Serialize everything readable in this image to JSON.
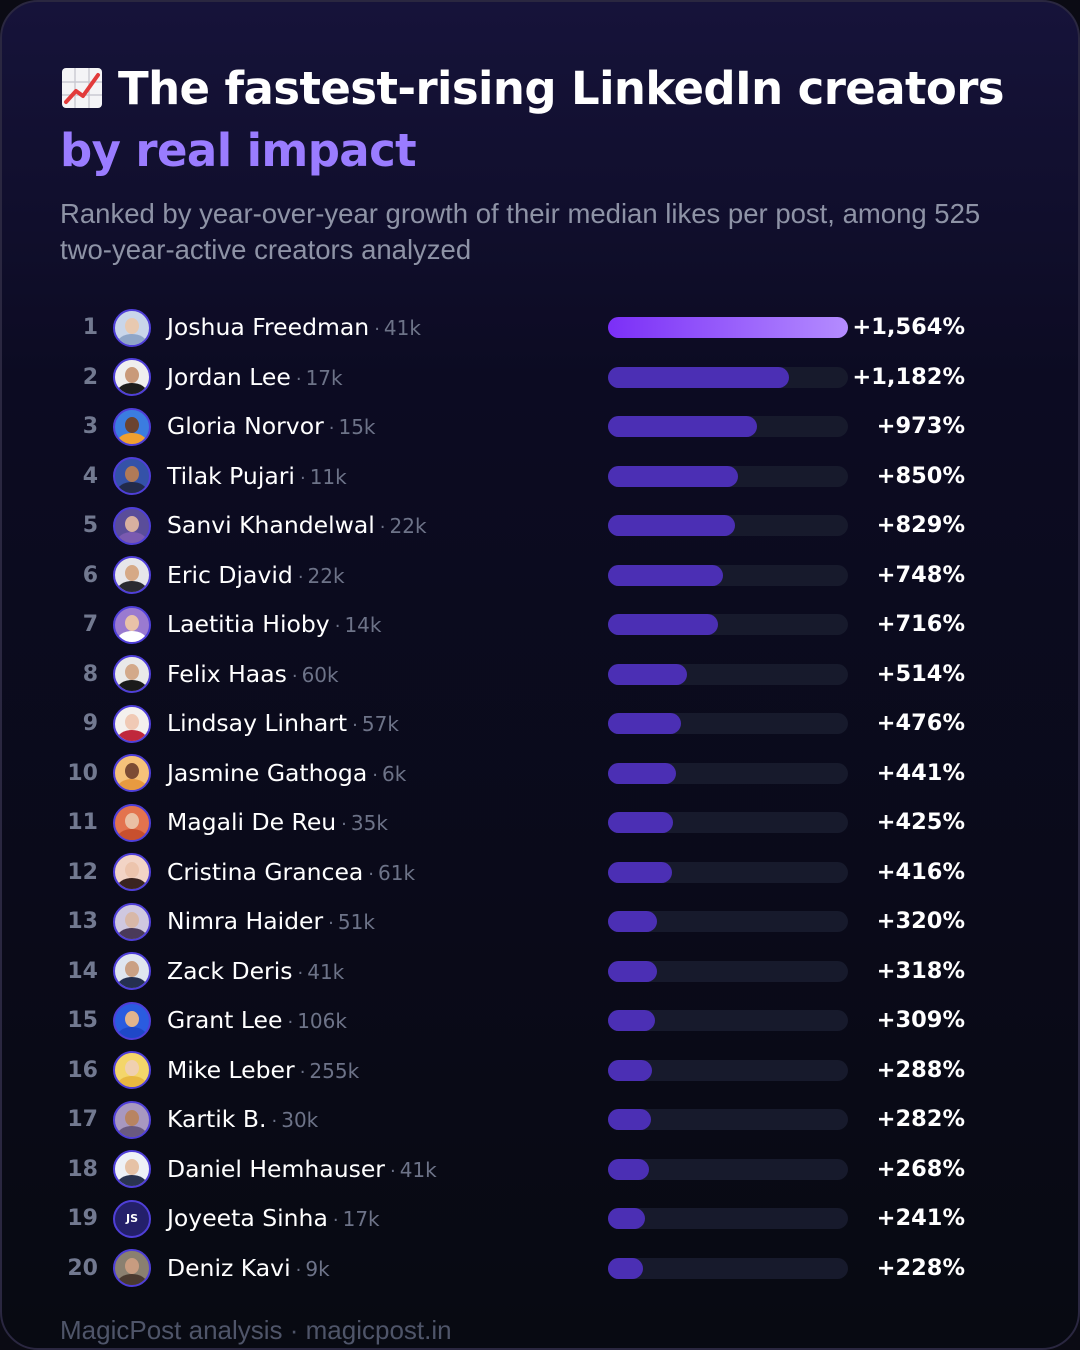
{
  "header": {
    "emoji": "chart-increasing-icon",
    "title_main": "The fastest-rising LinkedIn creators ",
    "title_accent": "by real impact",
    "subtitle": "Ranked by year-over-year growth of their median likes per post, among 525 two-year-active creators analyzed"
  },
  "colors": {
    "accent": "#9a7cff",
    "bar": "#4b2fb4",
    "bar_lead_start": "#7b2ff7",
    "bar_lead_end": "#b48cff",
    "track": "#171a2c"
  },
  "chart_data": {
    "type": "bar",
    "orientation": "horizontal",
    "title": "The fastest-rising LinkedIn creators by real impact",
    "subtitle": "Ranked by year-over-year growth of their median likes per post, among 525 two-year-active creators analyzed",
    "xlim": [
      0,
      1564
    ],
    "unit": "%",
    "rows": [
      {
        "rank": "1",
        "name": "Joshua Freedman",
        "followers": "41k",
        "value": 1564,
        "label": "+1,564%",
        "avatar": {
          "skin": "#e8c9b0",
          "shirt": "#8fa6c8",
          "bg": "#c9d6ea"
        }
      },
      {
        "rank": "2",
        "name": "Jordan Lee",
        "followers": "17k",
        "value": 1182,
        "label": "+1,182%",
        "avatar": {
          "skin": "#c99a7a",
          "shirt": "#1c1c1c",
          "bg": "#efefef"
        }
      },
      {
        "rank": "3",
        "name": "Gloria Norvor",
        "followers": "15k",
        "value": 973,
        "label": "+973%",
        "avatar": {
          "skin": "#6b4330",
          "shirt": "#f0a030",
          "bg": "#3b7de0"
        }
      },
      {
        "rank": "4",
        "name": "Tilak Pujari",
        "followers": "11k",
        "value": 850,
        "label": "+850%",
        "avatar": {
          "skin": "#b07a58",
          "shirt": "#222a4a",
          "bg": "#3452a8"
        }
      },
      {
        "rank": "5",
        "name": "Sanvi Khandelwal",
        "followers": "22k",
        "value": 829,
        "label": "+829%",
        "avatar": {
          "skin": "#d8b0a0",
          "shirt": "#7a5ab0",
          "bg": "#5a4d9a"
        }
      },
      {
        "rank": "6",
        "name": "Eric Djavid",
        "followers": "22k",
        "value": 748,
        "label": "+748%",
        "avatar": {
          "skin": "#d6a986",
          "shirt": "#2a2a30",
          "bg": "#e6e6ea"
        }
      },
      {
        "rank": "7",
        "name": "Laetitia Hioby",
        "followers": "14k",
        "value": 716,
        "label": "+716%",
        "avatar": {
          "skin": "#e9c2a8",
          "shirt": "#ffffff",
          "bg": "#9a7ad0"
        }
      },
      {
        "rank": "8",
        "name": "Felix Haas",
        "followers": "60k",
        "value": 514,
        "label": "+514%",
        "avatar": {
          "skin": "#d3a98a",
          "shirt": "#1a1a1a",
          "bg": "#e9e9e9"
        }
      },
      {
        "rank": "9",
        "name": "Lindsay Linhart",
        "followers": "57k",
        "value": 476,
        "label": "+476%",
        "avatar": {
          "skin": "#f0c9b5",
          "shirt": "#c0283c",
          "bg": "#f4f0ee"
        }
      },
      {
        "rank": "10",
        "name": "Jasmine Gathoga",
        "followers": "6k",
        "value": 441,
        "label": "+441%",
        "avatar": {
          "skin": "#7c4c34",
          "shirt": "#e89a40",
          "bg": "#f6c27a"
        }
      },
      {
        "rank": "11",
        "name": "Magali De Reu",
        "followers": "35k",
        "value": 425,
        "label": "+425%",
        "avatar": {
          "skin": "#eac0a4",
          "shirt": "#c8502e",
          "bg": "#e3734e"
        }
      },
      {
        "rank": "12",
        "name": "Cristina Grancea",
        "followers": "61k",
        "value": 416,
        "label": "+416%",
        "avatar": {
          "skin": "#ecc4ad",
          "shirt": "#3a2420",
          "bg": "#f2d4c6"
        }
      },
      {
        "rank": "13",
        "name": "Nimra Haider",
        "followers": "51k",
        "value": 320,
        "label": "+320%",
        "avatar": {
          "skin": "#d8b8a8",
          "shirt": "#4a3a5a",
          "bg": "#cfc8e0"
        }
      },
      {
        "rank": "14",
        "name": "Zack Deris",
        "followers": "41k",
        "value": 318,
        "label": "+318%",
        "avatar": {
          "skin": "#caa084",
          "shirt": "#253050",
          "bg": "#dfe5ef"
        }
      },
      {
        "rank": "15",
        "name": "Grant Lee",
        "followers": "106k",
        "value": 309,
        "label": "+309%",
        "avatar": {
          "skin": "#e2b48c",
          "shirt": "#1e48c8",
          "bg": "#2a5ce0"
        }
      },
      {
        "rank": "16",
        "name": "Mike Leber",
        "followers": "255k",
        "value": 288,
        "label": "+288%",
        "avatar": {
          "skin": "#f0d0b0",
          "shirt": "#e8b840",
          "bg": "#f4d66a"
        }
      },
      {
        "rank": "17",
        "name": "Kartik B.",
        "followers": "30k",
        "value": 282,
        "label": "+282%",
        "avatar": {
          "skin": "#b88462",
          "shirt": "#6a5a80",
          "bg": "#a898c0"
        }
      },
      {
        "rank": "18",
        "name": "Daniel Hemhauser",
        "followers": "41k",
        "value": 268,
        "label": "+268%",
        "avatar": {
          "skin": "#e6c2a6",
          "shirt": "#2a3450",
          "bg": "#eef1f6"
        }
      },
      {
        "rank": "19",
        "name": "Joyeeta Sinha",
        "followers": "17k",
        "value": 241,
        "label": "+241%",
        "avatar": {
          "initials": "JS",
          "bg": "#24206a"
        }
      },
      {
        "rank": "20",
        "name": "Deniz Kavi",
        "followers": "9k",
        "value": 228,
        "label": "+228%",
        "avatar": {
          "skin": "#c89c80",
          "shirt": "#4a3a30",
          "bg": "#8a8070"
        }
      }
    ]
  },
  "footer": {
    "text": "MagicPost analysis · magicpost.in"
  }
}
